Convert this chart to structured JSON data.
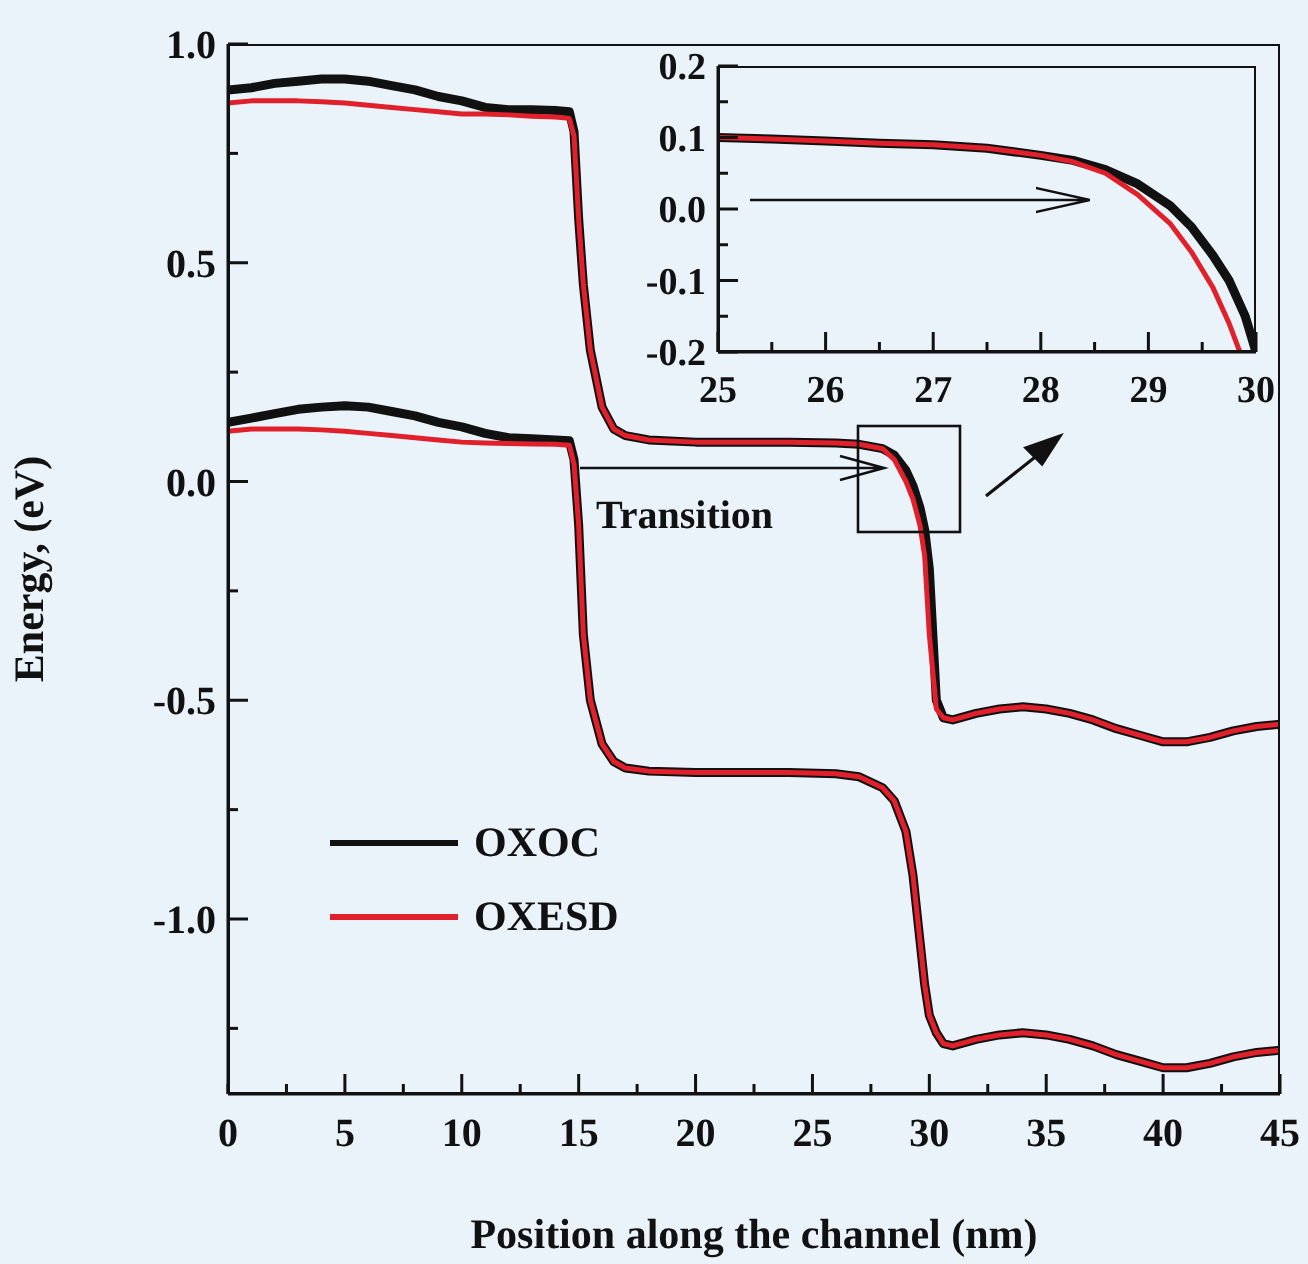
{
  "chart_data": [
    {
      "type": "line",
      "xlabel": "Position along the channel (nm)",
      "ylabel": "Energy, (eV)",
      "xlim": [
        0,
        45
      ],
      "ylim": [
        -1.4,
        1.0
      ],
      "xticks": [
        0,
        {
          "value": 2.5,
          "label": null
        },
        5,
        {
          "value": 7.5,
          "label": null
        },
        10,
        {
          "value": 12.5,
          "label": null
        },
        15,
        {
          "value": 17.5,
          "label": null
        },
        20,
        {
          "value": 22.5,
          "label": null
        },
        25,
        {
          "value": 27.5,
          "label": null
        },
        30,
        {
          "value": 32.5,
          "label": null
        },
        35,
        {
          "value": 37.5,
          "label": null
        },
        40,
        {
          "value": 42.5,
          "label": null
        },
        45
      ],
      "yticks": [
        {
          "value": -1.25,
          "label": null
        },
        {
          "value": -1.0,
          "label": "-1.0"
        },
        {
          "value": -0.75,
          "label": null
        },
        -0.5,
        {
          "value": -0.25,
          "label": null
        },
        {
          "value": 0,
          "label": "0.0"
        },
        {
          "value": 0.25,
          "label": null
        },
        0.5,
        {
          "value": 0.75,
          "label": null
        },
        {
          "value": 1.0,
          "label": "1.0"
        }
      ],
      "legend": "bottom left",
      "annotations": [
        "Transition"
      ],
      "series": [
        {
          "name": "OXOC",
          "color": "#111111",
          "x": [
            0,
            1,
            2,
            3,
            4,
            5,
            6,
            7,
            8,
            9,
            10,
            11,
            12,
            13,
            14,
            14.6,
            14.8,
            15,
            15.2,
            15.5,
            16,
            16.5,
            17,
            18,
            20,
            22,
            24,
            26,
            27,
            28,
            28.5,
            29,
            29.3,
            29.6,
            29.8,
            30,
            30.3,
            30.6,
            31,
            32,
            33,
            34,
            35,
            36,
            37,
            38,
            39,
            40,
            41,
            42,
            43,
            44,
            45
          ],
          "values": [
            0.895,
            0.9,
            0.91,
            0.915,
            0.92,
            0.92,
            0.915,
            0.905,
            0.895,
            0.88,
            0.87,
            0.855,
            0.85,
            0.85,
            0.848,
            0.845,
            0.8,
            0.6,
            0.45,
            0.3,
            0.17,
            0.12,
            0.105,
            0.095,
            0.09,
            0.09,
            0.09,
            0.088,
            0.085,
            0.075,
            0.06,
            0.025,
            -0.01,
            -0.06,
            -0.11,
            -0.2,
            -0.5,
            -0.54,
            -0.545,
            -0.53,
            -0.52,
            -0.515,
            -0.52,
            -0.53,
            -0.545,
            -0.565,
            -0.58,
            -0.595,
            -0.595,
            -0.585,
            -0.57,
            -0.56,
            -0.555
          ]
        },
        {
          "name": "OXESD",
          "color": "#e0202a",
          "x": [
            0,
            1,
            2,
            3,
            4,
            5,
            6,
            7,
            8,
            9,
            10,
            11,
            12,
            13,
            14,
            14.6,
            14.8,
            15,
            15.2,
            15.5,
            16,
            16.5,
            17,
            18,
            20,
            22,
            24,
            26,
            27,
            28,
            28.5,
            29,
            29.3,
            29.6,
            29.8,
            30,
            30.3,
            30.6,
            31,
            32,
            33,
            34,
            35,
            36,
            37,
            38,
            39,
            40,
            41,
            42,
            43,
            44,
            45
          ],
          "values": [
            0.865,
            0.87,
            0.87,
            0.87,
            0.868,
            0.865,
            0.86,
            0.855,
            0.85,
            0.845,
            0.84,
            0.84,
            0.838,
            0.835,
            0.833,
            0.83,
            0.79,
            0.6,
            0.45,
            0.3,
            0.17,
            0.12,
            0.105,
            0.095,
            0.09,
            0.09,
            0.09,
            0.088,
            0.085,
            0.075,
            0.05,
            0.0,
            -0.04,
            -0.1,
            -0.17,
            -0.35,
            -0.52,
            -0.54,
            -0.545,
            -0.53,
            -0.52,
            -0.515,
            -0.52,
            -0.53,
            -0.545,
            -0.565,
            -0.58,
            -0.595,
            -0.595,
            -0.585,
            -0.57,
            -0.56,
            -0.555
          ]
        },
        {
          "color": "#111111",
          "x": [
            0,
            1,
            2,
            3,
            4,
            5,
            6,
            7,
            8,
            9,
            10,
            11,
            12,
            13,
            14,
            14.6,
            14.8,
            15,
            15.2,
            15.5,
            16,
            16.5,
            17,
            18,
            20,
            22,
            24,
            26,
            27,
            28,
            28.5,
            29,
            29.3,
            29.6,
            29.8,
            30,
            30.3,
            30.6,
            31,
            32,
            33,
            34,
            35,
            36,
            37,
            38,
            39,
            40,
            41,
            42,
            43,
            44,
            45
          ],
          "values": [
            0.135,
            0.145,
            0.155,
            0.165,
            0.17,
            0.173,
            0.17,
            0.16,
            0.15,
            0.135,
            0.125,
            0.11,
            0.1,
            0.098,
            0.095,
            0.093,
            0.05,
            -0.1,
            -0.35,
            -0.5,
            -0.6,
            -0.64,
            -0.655,
            -0.662,
            -0.665,
            -0.665,
            -0.665,
            -0.668,
            -0.675,
            -0.7,
            -0.73,
            -0.8,
            -0.9,
            -1.05,
            -1.15,
            -1.22,
            -1.26,
            -1.285,
            -1.29,
            -1.275,
            -1.265,
            -1.26,
            -1.265,
            -1.275,
            -1.29,
            -1.31,
            -1.325,
            -1.34,
            -1.34,
            -1.33,
            -1.315,
            -1.305,
            -1.3
          ]
        },
        {
          "color": "#e0202a",
          "x": [
            0,
            1,
            2,
            3,
            4,
            5,
            6,
            7,
            8,
            9,
            10,
            11,
            12,
            13,
            14,
            14.6,
            14.8,
            15,
            15.2,
            15.5,
            16,
            16.5,
            17,
            18,
            20,
            22,
            24,
            26,
            27,
            28,
            28.5,
            29,
            29.3,
            29.6,
            29.8,
            30,
            30.3,
            30.6,
            31,
            32,
            33,
            34,
            35,
            36,
            37,
            38,
            39,
            40,
            41,
            42,
            43,
            44,
            45
          ],
          "values": [
            0.115,
            0.12,
            0.12,
            0.12,
            0.118,
            0.115,
            0.11,
            0.105,
            0.1,
            0.095,
            0.09,
            0.088,
            0.087,
            0.086,
            0.085,
            0.083,
            0.04,
            -0.1,
            -0.35,
            -0.5,
            -0.6,
            -0.64,
            -0.655,
            -0.662,
            -0.665,
            -0.665,
            -0.665,
            -0.668,
            -0.675,
            -0.7,
            -0.73,
            -0.8,
            -0.9,
            -1.05,
            -1.15,
            -1.22,
            -1.26,
            -1.285,
            -1.29,
            -1.275,
            -1.265,
            -1.26,
            -1.265,
            -1.275,
            -1.29,
            -1.31,
            -1.325,
            -1.34,
            -1.34,
            -1.33,
            -1.315,
            -1.305,
            -1.3
          ]
        }
      ]
    },
    {
      "type": "line",
      "xlim": [
        25,
        30
      ],
      "ylim": [
        -0.2,
        0.2
      ],
      "xticks": [
        25,
        {
          "value": 25.5,
          "label": null
        },
        26,
        {
          "value": 26.5,
          "label": null
        },
        27,
        {
          "value": 27.5,
          "label": null
        },
        28,
        {
          "value": 28.5,
          "label": null
        },
        29,
        {
          "value": 29.5,
          "label": null
        },
        30
      ],
      "yticks": [
        -0.2,
        {
          "value": -0.15,
          "label": null
        },
        -0.1,
        {
          "value": -0.05,
          "label": null
        },
        {
          "value": 0,
          "label": "0.0"
        },
        {
          "value": 0.05,
          "label": null
        },
        0.1,
        {
          "value": 0.15,
          "label": null
        },
        0.2
      ],
      "series": [
        {
          "color": "#111111",
          "x": [
            25,
            25.5,
            26,
            26.5,
            27,
            27.5,
            28,
            28.3,
            28.6,
            28.9,
            29.2,
            29.4,
            29.6,
            29.75,
            29.9,
            30
          ],
          "values": [
            0.1,
            0.098,
            0.095,
            0.092,
            0.09,
            0.085,
            0.075,
            0.068,
            0.055,
            0.035,
            0.005,
            -0.025,
            -0.065,
            -0.1,
            -0.15,
            -0.2
          ]
        },
        {
          "color": "#e0202a",
          "x": [
            25,
            25.5,
            26,
            26.5,
            27,
            27.5,
            28,
            28.3,
            28.6,
            28.9,
            29.2,
            29.4,
            29.6,
            29.75,
            29.85
          ],
          "values": [
            0.1,
            0.098,
            0.095,
            0.092,
            0.09,
            0.085,
            0.075,
            0.066,
            0.05,
            0.02,
            -0.02,
            -0.06,
            -0.11,
            -0.16,
            -0.2
          ]
        }
      ]
    }
  ]
}
